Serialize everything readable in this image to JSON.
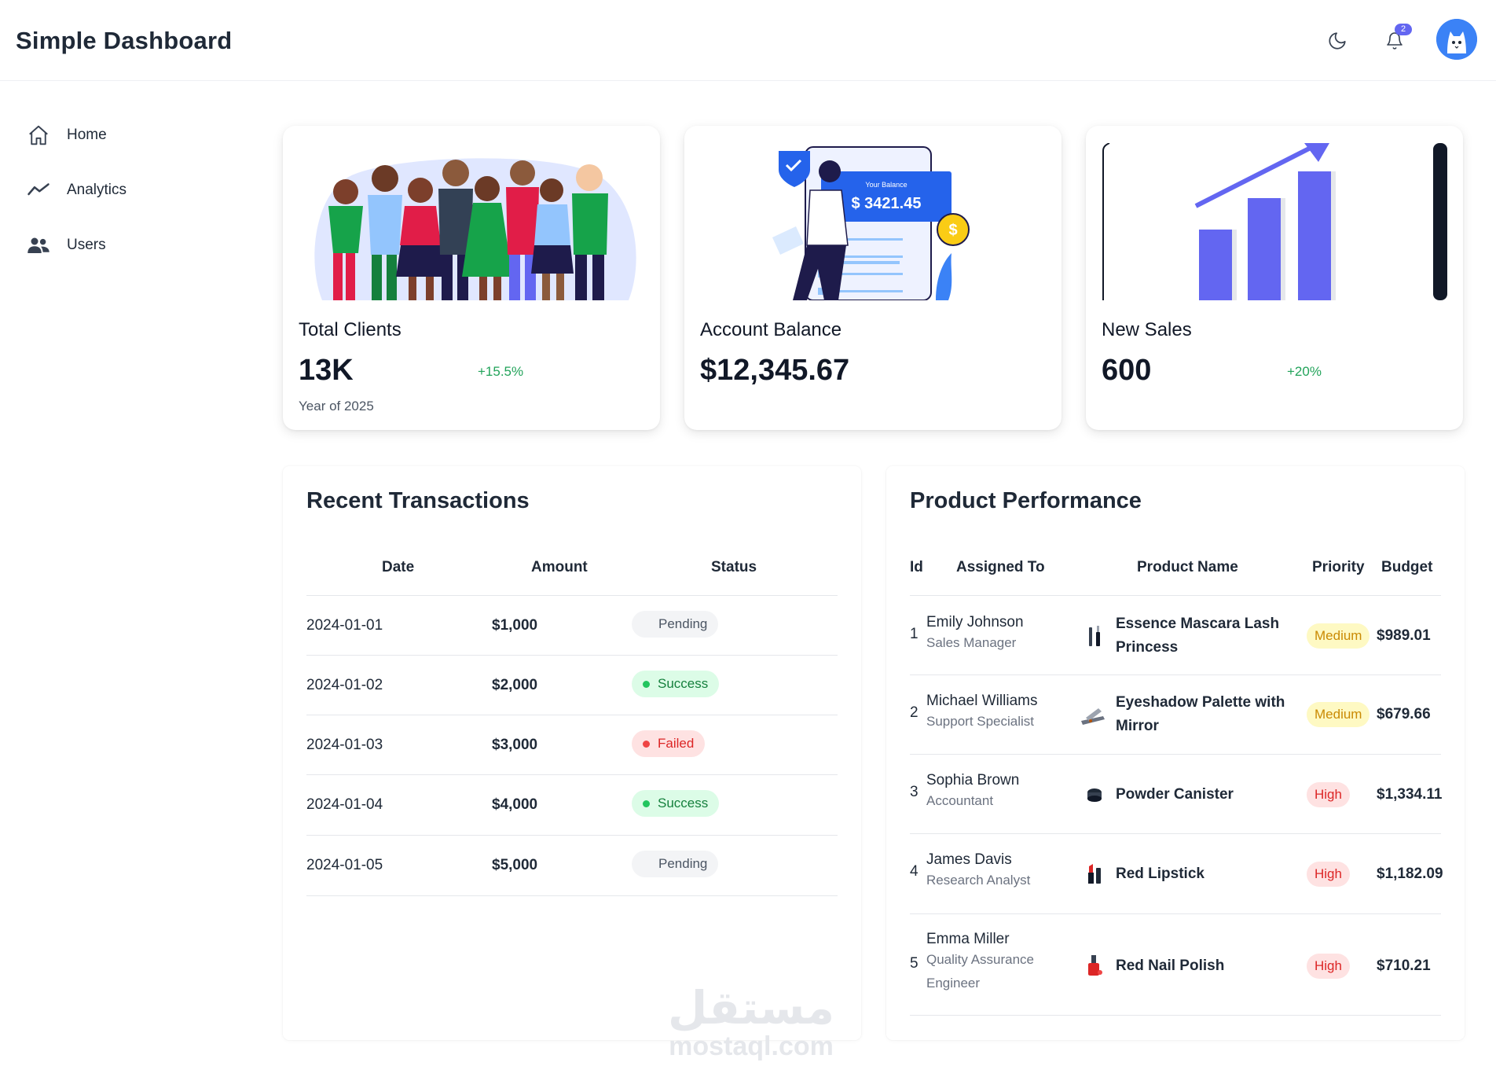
{
  "header": {
    "title": "Simple Dashboard",
    "notification_count": "2",
    "icons": {
      "theme": "moon-icon",
      "notifications": "bell-icon",
      "avatar": "cat-avatar"
    }
  },
  "sidebar": {
    "items": [
      {
        "label": "Home",
        "icon": "home-icon"
      },
      {
        "label": "Analytics",
        "icon": "trend-line-icon"
      },
      {
        "label": "Users",
        "icon": "users-icon"
      }
    ]
  },
  "cards": [
    {
      "title": "Total Clients",
      "value": "13K",
      "change": "+15.5%",
      "subtitle": "Year of 2025"
    },
    {
      "title": "Account Balance",
      "value": "$12,345.67",
      "illustration_label": "Your Balance",
      "illustration_value": "$ 3421.45"
    },
    {
      "title": "New Sales",
      "value": "600",
      "change": "+20%"
    }
  ],
  "transactions": {
    "title": "Recent Transactions",
    "columns": [
      "Date",
      "Amount",
      "Status"
    ],
    "rows": [
      {
        "date": "2024-01-01",
        "amount": "$1,000",
        "status": "Pending"
      },
      {
        "date": "2024-01-02",
        "amount": "$2,000",
        "status": "Success"
      },
      {
        "date": "2024-01-03",
        "amount": "$3,000",
        "status": "Failed"
      },
      {
        "date": "2024-01-04",
        "amount": "$4,000",
        "status": "Success"
      },
      {
        "date": "2024-01-05",
        "amount": "$5,000",
        "status": "Pending"
      }
    ]
  },
  "products": {
    "title": "Product Performance",
    "columns": [
      "Id",
      "Assigned To",
      "Product Name",
      "Priority",
      "Budget"
    ],
    "rows": [
      {
        "id": "1",
        "name": "Emily Johnson",
        "role": "Sales Manager",
        "product": "Essence Mascara Lash Princess",
        "priority": "Medium",
        "budget": "$989.01"
      },
      {
        "id": "2",
        "name": "Michael Williams",
        "role": "Support Specialist",
        "product": "Eyeshadow Palette with Mirror",
        "priority": "Medium",
        "budget": "$679.66"
      },
      {
        "id": "3",
        "name": "Sophia Brown",
        "role": "Accountant",
        "product": "Powder Canister",
        "priority": "High",
        "budget": "$1,334.11"
      },
      {
        "id": "4",
        "name": "James Davis",
        "role": "Research Analyst",
        "product": "Red Lipstick",
        "priority": "High",
        "budget": "$1,182.09"
      },
      {
        "id": "5",
        "name": "Emma Miller",
        "role": "Quality Assurance Engineer",
        "product": "Red Nail Polish",
        "priority": "High",
        "budget": "$710.21"
      }
    ]
  },
  "watermark": {
    "arabic": "مستقل",
    "latin": "mostaql.com"
  },
  "colors": {
    "accent": "#6366f1",
    "success": "#22c55e",
    "danger": "#ef4444",
    "warning": "#ca8a04"
  }
}
